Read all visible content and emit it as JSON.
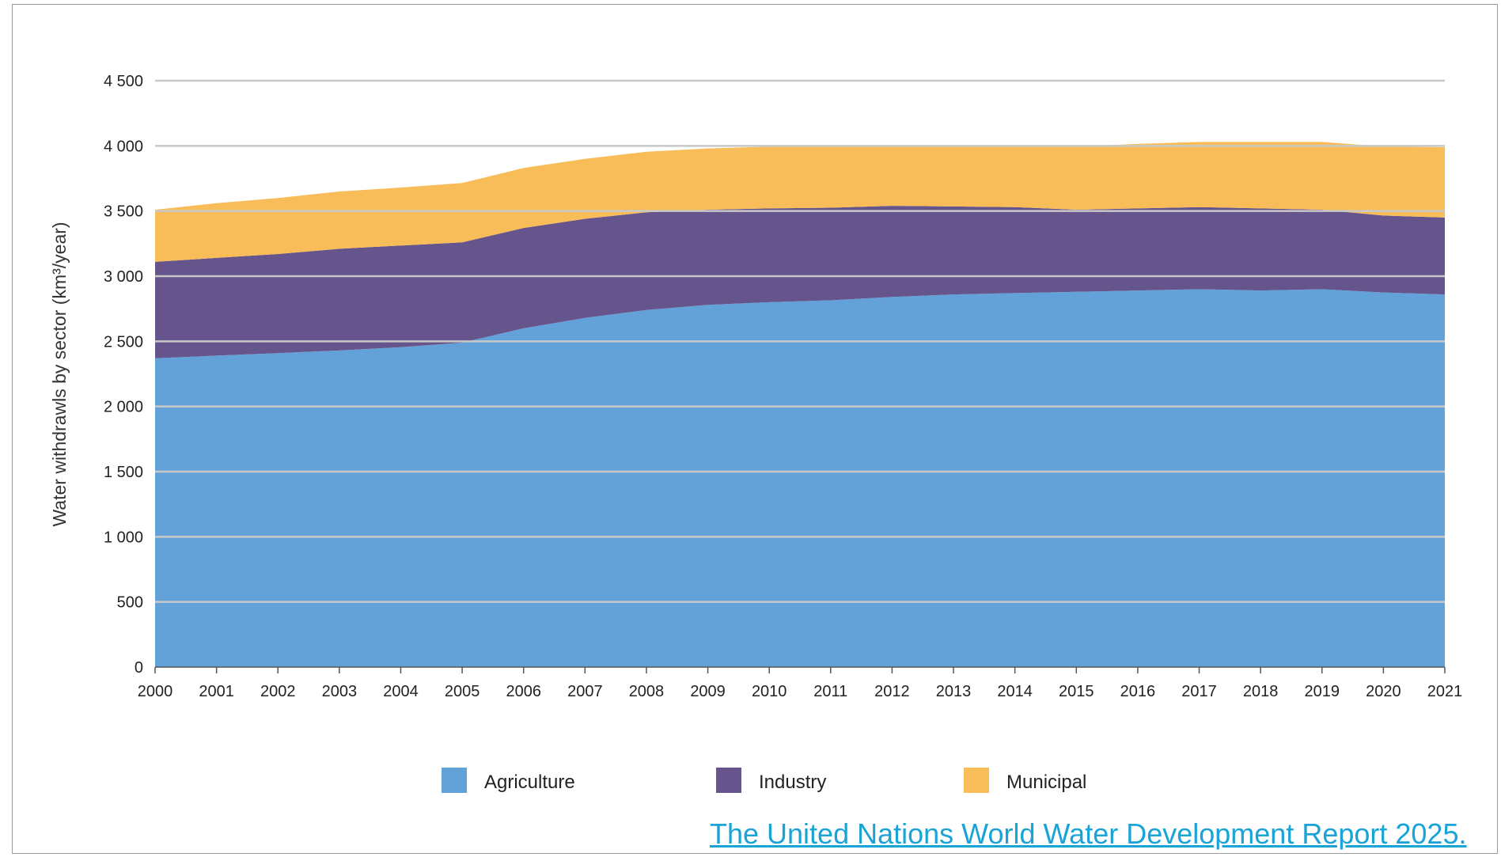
{
  "chart_data": {
    "type": "area",
    "stacked": true,
    "title": "",
    "xlabel": "",
    "ylabel": "Water withdrawls by sector (km³/year)",
    "ylim": [
      0,
      4500
    ],
    "yticks": [
      0,
      500,
      1000,
      1500,
      2000,
      2500,
      3000,
      3500,
      4000,
      4500
    ],
    "ytick_labels": [
      "0",
      "500",
      "1 000",
      "1 500",
      "2 000",
      "2 500",
      "3 000",
      "3 500",
      "4 000",
      "4 500"
    ],
    "grid": "horizontal",
    "legend_position": "bottom",
    "categories": [
      "2000",
      "2001",
      "2002",
      "2003",
      "2004",
      "2005",
      "2006",
      "2007",
      "2008",
      "2009",
      "2010",
      "2011",
      "2012",
      "2013",
      "2014",
      "2015",
      "2016",
      "2017",
      "2018",
      "2019",
      "2020",
      "2021"
    ],
    "series": [
      {
        "name": "Agriculture",
        "color": "#62a2d8",
        "values": [
          2370,
          2390,
          2410,
          2430,
          2455,
          2490,
          2600,
          2680,
          2740,
          2780,
          2800,
          2815,
          2840,
          2860,
          2870,
          2880,
          2890,
          2900,
          2890,
          2900,
          2875,
          2860
        ]
      },
      {
        "name": "Industry",
        "color": "#66558c",
        "values": [
          740,
          750,
          760,
          780,
          780,
          770,
          770,
          760,
          750,
          730,
          720,
          710,
          700,
          675,
          660,
          630,
          630,
          630,
          630,
          610,
          590,
          590
        ]
      },
      {
        "name": "Municipal",
        "color": "#f8bc58",
        "values": [
          400,
          420,
          430,
          440,
          445,
          455,
          460,
          460,
          465,
          470,
          475,
          475,
          465,
          470,
          470,
          485,
          495,
          500,
          510,
          520,
          530,
          540
        ]
      }
    ]
  },
  "source": {
    "text": "The United Nations World Water Development Report 2025."
  }
}
